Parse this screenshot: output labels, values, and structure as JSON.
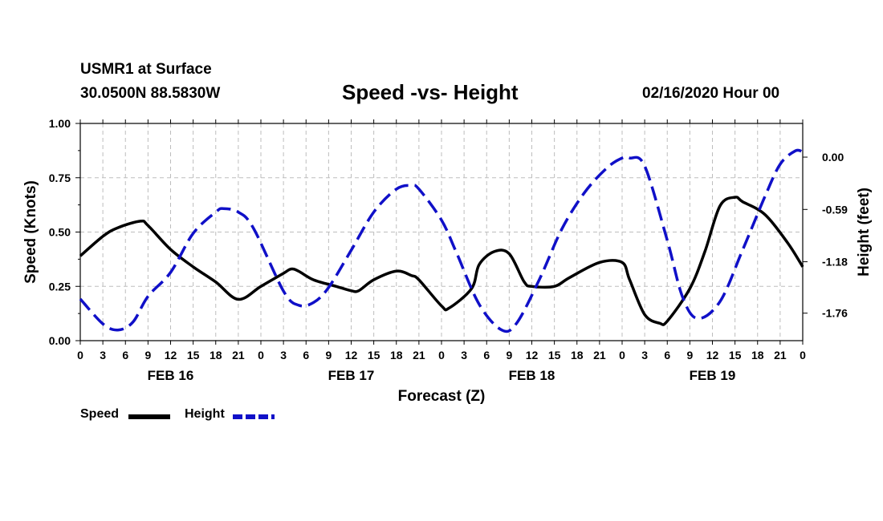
{
  "header": {
    "station": "USMR1 at Surface",
    "coords": "30.0500N 88.5830W",
    "title": "Speed -vs- Height",
    "date": "02/16/2020 Hour 00"
  },
  "chart_data": {
    "type": "line",
    "title": "Speed -vs- Height",
    "xlabel": "Forecast (Z)",
    "ylabel_left": "Speed (Knots)",
    "ylabel_right": "Height (feet)",
    "x_range_hours": [
      0,
      96
    ],
    "x_tick_step_hours": 3,
    "x_tick_labels": [
      "0",
      "3",
      "6",
      "9",
      "12",
      "15",
      "18",
      "21",
      "0",
      "3",
      "6",
      "9",
      "12",
      "15",
      "18",
      "21",
      "0",
      "3",
      "6",
      "9",
      "12",
      "15",
      "18",
      "21",
      "0",
      "3",
      "6",
      "9",
      "12",
      "15",
      "18",
      "21",
      "0"
    ],
    "day_labels": [
      {
        "label": "FEB 16",
        "center_hour": 12
      },
      {
        "label": "FEB 17",
        "center_hour": 36
      },
      {
        "label": "FEB 18",
        "center_hour": 60
      },
      {
        "label": "FEB 19",
        "center_hour": 84
      }
    ],
    "y_left": {
      "range": [
        0,
        1.0
      ],
      "ticks": [
        "0.00",
        "0.25",
        "0.50",
        "0.75",
        "1.00"
      ]
    },
    "y_right": {
      "range": [
        -2.07,
        0.38
      ],
      "ticks": [
        "0.00",
        "-0.59",
        "-1.18",
        "-1.76"
      ],
      "tick_values": [
        0.0,
        -0.59,
        -1.18,
        -1.76
      ]
    },
    "grid": true,
    "legend": [
      {
        "name": "Speed",
        "color": "#000000",
        "style": "solid"
      },
      {
        "name": "Height",
        "color": "#1010c8",
        "style": "dashed"
      }
    ],
    "series": [
      {
        "name": "Speed",
        "axis": "left",
        "color": "#000000",
        "style": "solid",
        "x": [
          0,
          3,
          5,
          8,
          9,
          12,
          15,
          18,
          21,
          24,
          27,
          28,
          29,
          31,
          34,
          36,
          37,
          39,
          42,
          44,
          45,
          48,
          49,
          52,
          53,
          55,
          57,
          59,
          60,
          63,
          65,
          69,
          72,
          73,
          75,
          77,
          78,
          81,
          83,
          85,
          87,
          88,
          91,
          94,
          96
        ],
        "values": [
          0.39,
          0.48,
          0.52,
          0.55,
          0.53,
          0.42,
          0.34,
          0.27,
          0.19,
          0.25,
          0.31,
          0.33,
          0.32,
          0.28,
          0.25,
          0.23,
          0.23,
          0.28,
          0.32,
          0.3,
          0.28,
          0.16,
          0.15,
          0.24,
          0.35,
          0.41,
          0.4,
          0.27,
          0.25,
          0.25,
          0.29,
          0.36,
          0.36,
          0.28,
          0.12,
          0.08,
          0.09,
          0.24,
          0.41,
          0.62,
          0.66,
          0.64,
          0.58,
          0.45,
          0.34
        ]
      },
      {
        "name": "Height",
        "axis": "right",
        "color": "#1010c8",
        "style": "dashed",
        "x": [
          0,
          3,
          5,
          7,
          9,
          12,
          15,
          18,
          19,
          21,
          23,
          27,
          29,
          31,
          33,
          36,
          39,
          42,
          44,
          45,
          48,
          50,
          53,
          56,
          58,
          61,
          64,
          67,
          70,
          72,
          73,
          75,
          78,
          80,
          82,
          85,
          88,
          91,
          93,
          95,
          96
        ],
        "values": [
          -1.6,
          -1.88,
          -1.95,
          -1.86,
          -1.57,
          -1.3,
          -0.86,
          -0.62,
          -0.58,
          -0.62,
          -0.8,
          -1.51,
          -1.67,
          -1.64,
          -1.47,
          -1.05,
          -0.62,
          -0.36,
          -0.32,
          -0.36,
          -0.71,
          -1.08,
          -1.66,
          -1.95,
          -1.87,
          -1.38,
          -0.81,
          -0.4,
          -0.12,
          -0.01,
          -0.01,
          -0.1,
          -0.94,
          -1.57,
          -1.82,
          -1.63,
          -1.05,
          -0.44,
          -0.08,
          0.07,
          0.06
        ]
      }
    ]
  }
}
